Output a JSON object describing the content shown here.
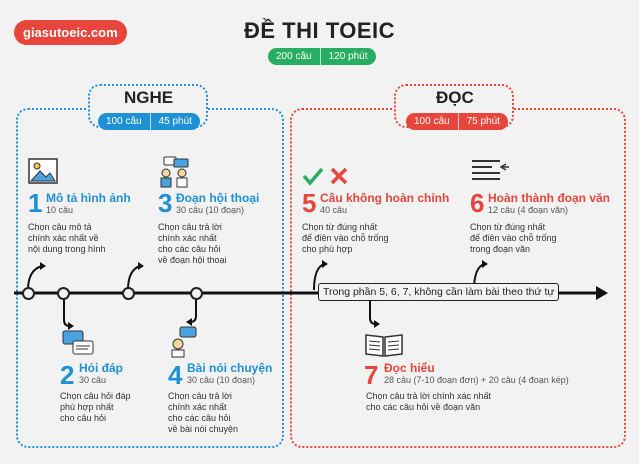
{
  "header": {
    "logo": "giasutoeic.com",
    "title": "ĐỀ THI TOEIC",
    "total_questions": "200 câu",
    "total_time": "120 phút"
  },
  "listening": {
    "title": "NGHE",
    "questions": "100 câu",
    "time": "45 phút",
    "parts": [
      {
        "num": "1",
        "title": "Mô tả hình ảnh",
        "count": "10 câu",
        "desc": [
          "Chọn câu mô tả",
          "chính xác nhất về",
          "nội dung trong hình"
        ],
        "icon": "image-icon"
      },
      {
        "num": "2",
        "title": "Hỏi đáp",
        "count": "30 câu",
        "desc": [
          "Chọn câu hỏi đáp",
          "phù hợp nhất",
          "cho câu hỏi"
        ],
        "icon": "chat-bubbles-icon"
      },
      {
        "num": "3",
        "title": "Đoạn hội thoại",
        "count": "30 câu (10 đoạn)",
        "desc": [
          "Chọn câu trả lời",
          "chính xác nhất",
          "cho các câu hỏi",
          "về đoạn hội thoại"
        ],
        "icon": "conversation-icon"
      },
      {
        "num": "4",
        "title": "Bài nói chuyện",
        "count": "30 câu (10 đoạn)",
        "desc": [
          "Chọn câu trả lời",
          "chính xác nhất",
          "cho các câu hỏi",
          "về bài nói chuyện"
        ],
        "icon": "speaker-icon"
      }
    ]
  },
  "reading": {
    "title": "ĐỌC",
    "questions": "100 câu",
    "time": "75 phút",
    "parts": [
      {
        "num": "5",
        "title": "Câu không hoàn chỉnh",
        "count": "40 câu",
        "desc": [
          "Chọn từ đúng nhất",
          "để điền vào chỗ trống",
          "cho phù hợp"
        ],
        "icon": "check-cross-icon"
      },
      {
        "num": "6",
        "title": "Hoàn thành đoạn văn",
        "count": "12 câu (4 đoạn văn)",
        "desc": [
          "Chọn từ đúng nhất",
          "để điền vào chỗ trống",
          "trong đoạn văn"
        ],
        "icon": "text-lines-icon"
      },
      {
        "num": "7",
        "title": "Đọc hiểu",
        "count": "28 câu (7-10 đoạn đơn) + 20 câu (4 đoạn kép)",
        "desc": [
          "Chọn câu trả lời chính xác nhất",
          "cho các câu hỏi về đoạn văn"
        ],
        "icon": "book-icon"
      }
    ]
  },
  "timeline_note": "Trong phần 5, 6, 7, không cần làm bài theo thứ tự",
  "colors": {
    "listening": "#1e90d6",
    "reading": "#e8453c",
    "total": "#27ae60"
  }
}
